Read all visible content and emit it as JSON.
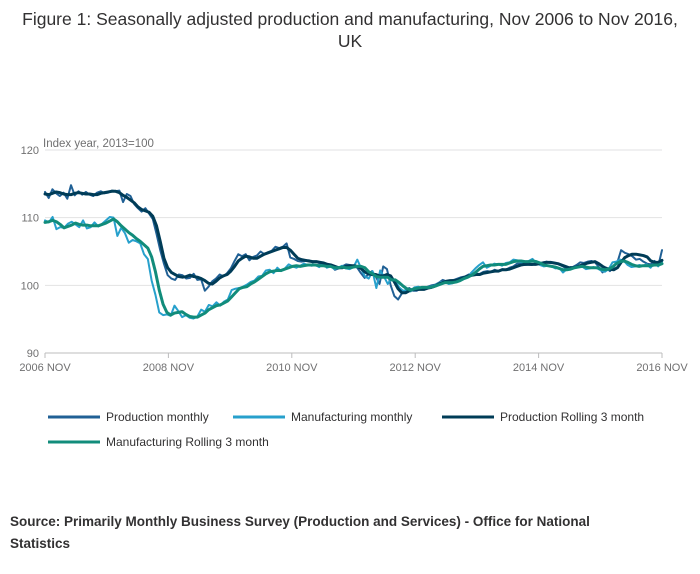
{
  "chart_data": {
    "type": "line",
    "title": "Figure 1: Seasonally adjusted production and manufacturing, Nov 2006 to Nov 2016, UK",
    "ylabel": "Index year, 2013=100",
    "xlabel": "",
    "ylim": [
      90,
      120
    ],
    "yticks": [
      "90",
      "100",
      "110",
      "120"
    ],
    "xticks": [
      "2006 NOV",
      "2008 NOV",
      "2010 NOV",
      "2012 NOV",
      "2014 NOV",
      "2016 NOV"
    ],
    "x_start": "2006-11",
    "x_end": "2016-11",
    "grid": true,
    "legend_position": "bottom",
    "series": [
      {
        "name": "Production monthly",
        "color": "#206095",
        "width": 2,
        "values": [
          113.8,
          112.9,
          114.2,
          113.6,
          113.2,
          113.7,
          112.8,
          114.8,
          113.3,
          113.9,
          113.4,
          113.8,
          113.4,
          113.2,
          113.7,
          113.9,
          113.6,
          113.7,
          114.0,
          113.9,
          114.0,
          112.3,
          113.5,
          113.2,
          112.0,
          111.4,
          110.9,
          111.4,
          110.6,
          109.8,
          107.6,
          105.2,
          103.2,
          101.5,
          101.0,
          100.8,
          101.6,
          101.5,
          101.0,
          101.1,
          101.7,
          100.8,
          100.9,
          99.2,
          99.8,
          100.6,
          101.0,
          101.6,
          101.3,
          101.8,
          102.5,
          103.6,
          104.6,
          104.3,
          104.6,
          103.7,
          104.2,
          104.4,
          105.0,
          104.6,
          104.9,
          105.1,
          105.7,
          105.5,
          105.7,
          106.2,
          104.1,
          103.9,
          103.6,
          103.5,
          103.6,
          103.7,
          103.4,
          103.5,
          103.2,
          103.0,
          102.8,
          102.9,
          102.3,
          102.5,
          102.8,
          103.1,
          103.0,
          102.9,
          102.6,
          101.8,
          101.1,
          101.6,
          102.1,
          101.3,
          100.2,
          102.8,
          102.4,
          100.0,
          98.4,
          97.9,
          98.8,
          99.3,
          99.6,
          99.2,
          99.2,
          99.5,
          99.5,
          99.8,
          100.0,
          100.1,
          100.4,
          100.8,
          100.6,
          100.7,
          100.8,
          101.0,
          101.2,
          101.3,
          101.6,
          101.5,
          101.7,
          101.7,
          102.0,
          102.1,
          102.0,
          102.3,
          102.1,
          102.4,
          102.3,
          102.6,
          102.8,
          103.2,
          103.2,
          103.0,
          103.1,
          103.0,
          103.3,
          103.2,
          103.4,
          103.5,
          103.3,
          103.3,
          103.2,
          102.9,
          102.6,
          102.6,
          102.7,
          103.0,
          103.4,
          103.3,
          103.5,
          103.6,
          103.4,
          102.7,
          101.9,
          102.6,
          102.1,
          102.7,
          103.4,
          105.2,
          104.8,
          104.6,
          104.3,
          103.8,
          103.9,
          103.5,
          103.2,
          103.1,
          103.6,
          102.9,
          105.2
        ]
      },
      {
        "name": "Manufacturing monthly",
        "color": "#27a0cc",
        "width": 2,
        "values": [
          109.6,
          109.3,
          110.1,
          108.3,
          108.6,
          108.5,
          109.1,
          109.4,
          109.0,
          108.6,
          109.6,
          108.4,
          108.6,
          109.3,
          108.7,
          109.1,
          109.6,
          110.1,
          110.0,
          107.3,
          108.5,
          107.7,
          106.3,
          106.7,
          106.5,
          106.2,
          104.6,
          103.9,
          100.7,
          98.6,
          96.0,
          95.6,
          95.7,
          95.5,
          97.0,
          96.2,
          95.3,
          95.6,
          95.2,
          95.1,
          95.4,
          96.4,
          96.1,
          97.1,
          96.9,
          97.5,
          97.0,
          97.6,
          97.9,
          99.3,
          99.5,
          99.6,
          99.8,
          100.1,
          100.5,
          100.7,
          101.3,
          101.4,
          102.2,
          102.3,
          101.8,
          102.6,
          102.1,
          102.5,
          103.1,
          102.8,
          102.6,
          102.9,
          103.2,
          103.0,
          102.9,
          103.0,
          102.7,
          103.3,
          102.6,
          102.8,
          102.4,
          102.6,
          102.9,
          102.5,
          102.4,
          102.7,
          103.8,
          102.5,
          101.3,
          101.0,
          102.1,
          99.6,
          102.2,
          101.3,
          100.2,
          101.1,
          100.6,
          99.7,
          99.2,
          99.3,
          99.1,
          99.7,
          99.8,
          99.6,
          99.5,
          99.8,
          99.9,
          100.2,
          100.5,
          100.5,
          100.2,
          100.3,
          100.8,
          101.0,
          101.1,
          101.3,
          101.9,
          102.5,
          103.0,
          103.4,
          102.6,
          102.9,
          103.2,
          103.1,
          102.9,
          103.3,
          103.4,
          103.8,
          103.7,
          103.4,
          103.3,
          103.6,
          103.9,
          103.3,
          103.0,
          102.8,
          102.9,
          102.8,
          102.5,
          102.6,
          101.9,
          102.4,
          102.7,
          102.6,
          102.9,
          102.8,
          102.4,
          102.5,
          102.7,
          102.5,
          102.2,
          102.0,
          102.4,
          103.4,
          103.5,
          103.8,
          103.6,
          103.0,
          102.7,
          102.8,
          103.0,
          102.9,
          103.1,
          102.6,
          103.3,
          102.8,
          103.5
        ]
      },
      {
        "name": "Production Rolling 3 month",
        "color": "#003c57",
        "width": 3,
        "values": [
          113.5,
          113.4,
          113.6,
          113.8,
          113.7,
          113.5,
          113.4,
          113.4,
          113.6,
          113.7,
          113.6,
          113.5,
          113.5,
          113.4,
          113.4,
          113.6,
          113.7,
          113.8,
          113.9,
          113.9,
          113.7,
          113.3,
          113.0,
          112.6,
          112.2,
          111.6,
          111.2,
          111.0,
          110.8,
          110.2,
          108.8,
          106.5,
          104.0,
          102.6,
          101.9,
          101.6,
          101.3,
          101.2,
          101.3,
          101.5,
          101.3,
          101.2,
          101.0,
          100.7,
          100.3,
          100.2,
          100.6,
          101.1,
          101.4,
          101.6,
          102.1,
          102.8,
          103.6,
          104.0,
          104.3,
          104.2,
          104.0,
          104.0,
          104.3,
          104.6,
          104.8,
          105.0,
          105.2,
          105.4,
          105.6,
          105.6,
          105.2,
          104.6,
          104.0,
          103.8,
          103.7,
          103.6,
          103.5,
          103.5,
          103.4,
          103.3,
          103.1,
          103.0,
          102.8,
          102.6,
          102.6,
          102.8,
          102.9,
          102.9,
          102.8,
          102.5,
          102.0,
          101.7,
          101.6,
          101.6,
          101.4,
          101.4,
          101.6,
          101.4,
          100.5,
          99.5,
          98.9,
          98.9,
          99.2,
          99.4,
          99.4,
          99.4,
          99.4,
          99.6,
          99.7,
          99.9,
          100.2,
          100.4,
          100.6,
          100.7,
          100.7,
          100.8,
          101.0,
          101.2,
          101.4,
          101.5,
          101.6,
          101.6,
          101.8,
          101.9,
          102.0,
          102.1,
          102.1,
          102.3,
          102.3,
          102.4,
          102.6,
          102.8,
          103.0,
          103.1,
          103.1,
          103.1,
          103.1,
          103.2,
          103.3,
          103.4,
          103.4,
          103.3,
          103.2,
          103.0,
          102.8,
          102.6,
          102.6,
          102.7,
          102.9,
          103.1,
          103.3,
          103.4,
          103.5,
          103.2,
          102.8,
          102.5,
          102.4,
          102.3,
          102.6,
          103.4,
          104.1,
          104.4,
          104.6,
          104.6,
          104.5,
          104.4,
          104.2,
          103.6,
          103.4,
          103.4,
          103.7
        ]
      },
      {
        "name": "Manufacturing Rolling 3 month",
        "color": "#118c7b",
        "width": 3,
        "values": [
          109.3,
          109.4,
          109.6,
          109.4,
          109.0,
          108.5,
          108.7,
          108.9,
          109.2,
          109.0,
          108.9,
          108.9,
          108.8,
          108.8,
          108.8,
          109.0,
          109.2,
          109.5,
          109.8,
          109.4,
          108.8,
          108.3,
          107.8,
          107.4,
          106.9,
          106.5,
          106.0,
          105.5,
          104.2,
          102.0,
          99.3,
          97.2,
          96.0,
          95.6,
          95.9,
          96.0,
          96.1,
          95.7,
          95.4,
          95.3,
          95.3,
          95.6,
          95.9,
          96.4,
          96.7,
          97.0,
          97.1,
          97.4,
          97.7,
          98.3,
          98.9,
          99.5,
          99.7,
          99.8,
          100.2,
          100.5,
          100.9,
          101.3,
          101.7,
          102.0,
          102.1,
          102.2,
          102.2,
          102.4,
          102.6,
          102.8,
          102.9,
          102.8,
          102.9,
          103.0,
          103.0,
          103.0,
          102.9,
          102.9,
          102.8,
          102.8,
          102.6,
          102.6,
          102.7,
          102.6,
          102.6,
          102.7,
          102.8,
          102.8,
          102.6,
          102.0,
          101.7,
          101.3,
          101.2,
          101.2,
          101.2,
          100.8,
          100.8,
          100.4,
          99.9,
          99.5,
          99.3,
          99.5,
          99.6,
          99.7,
          99.7,
          99.7,
          99.8,
          100.0,
          100.2,
          100.4,
          100.4,
          100.4,
          100.5,
          100.7,
          101.0,
          101.2,
          101.5,
          101.9,
          102.4,
          102.8,
          102.9,
          103.0,
          103.0,
          103.1,
          103.1,
          103.1,
          103.3,
          103.5,
          103.6,
          103.6,
          103.5,
          103.5,
          103.6,
          103.5,
          103.3,
          103.0,
          102.9,
          102.8,
          102.7,
          102.5,
          102.3,
          102.3,
          102.4,
          102.6,
          102.7,
          102.8,
          102.7,
          102.6,
          102.6,
          102.6,
          102.4,
          102.3,
          102.4,
          102.7,
          103.2,
          103.5,
          103.6,
          103.4,
          103.1,
          102.9,
          102.8,
          102.9,
          102.9,
          102.9,
          103.0,
          103.0,
          103.2
        ]
      }
    ]
  },
  "source": "Source: Primarily Monthly Business Survey (Production and Services) - Office for National Statistics"
}
